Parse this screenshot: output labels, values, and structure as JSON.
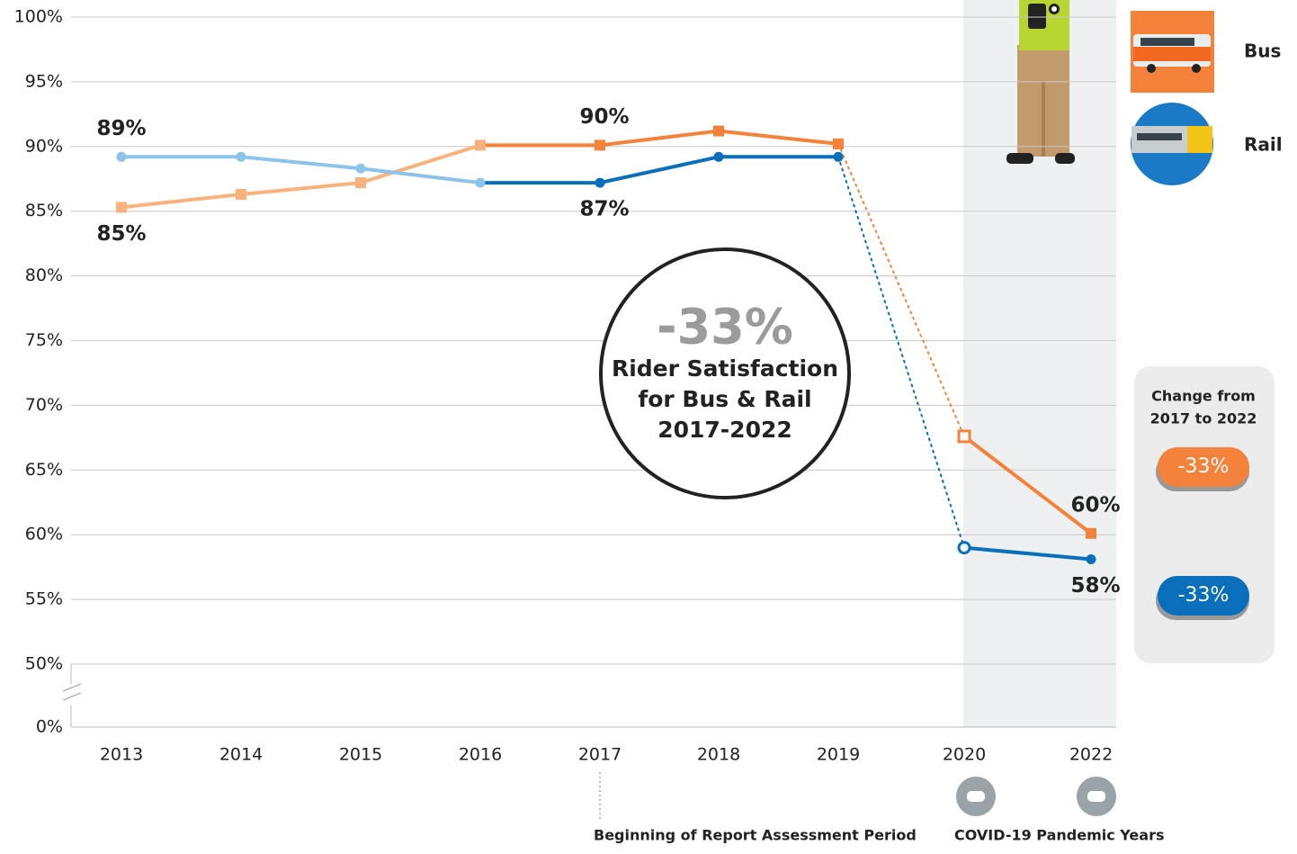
{
  "chart_data": {
    "type": "line",
    "categories": [
      "2013",
      "2014",
      "2015",
      "2016",
      "2017",
      "2018",
      "2019",
      "2020",
      "2022"
    ],
    "series": [
      {
        "name": "Bus",
        "color": "#f4823b",
        "early_color": "#f9b27c",
        "marker": "square",
        "values": [
          85.3,
          86.3,
          87.2,
          90.1,
          90.1,
          91.2,
          90.2,
          67.6,
          60.1
        ],
        "value_labels": [
          "85%",
          null,
          null,
          null,
          "90%",
          null,
          null,
          null,
          "60%"
        ]
      },
      {
        "name": "Rail",
        "color": "#0a6fba",
        "early_color": "#8cc3e8",
        "marker": "circle",
        "values": [
          89.2,
          89.2,
          88.3,
          87.2,
          87.2,
          89.2,
          89.2,
          59.0,
          58.1
        ],
        "value_labels": [
          "89%",
          null,
          null,
          null,
          "87%",
          null,
          null,
          null,
          "58%"
        ]
      }
    ],
    "ylim": [
      0,
      100
    ],
    "yticks": [
      {
        "value": 0,
        "label": "0%"
      },
      {
        "value": 50,
        "label": "50%"
      },
      {
        "value": 55,
        "label": "55%"
      },
      {
        "value": 60,
        "label": "60%"
      },
      {
        "value": 65,
        "label": "65%"
      },
      {
        "value": 70,
        "label": "70%"
      },
      {
        "value": 75,
        "label": "75%"
      },
      {
        "value": 80,
        "label": "80%"
      },
      {
        "value": 85,
        "label": "85%"
      },
      {
        "value": 90,
        "label": "90%"
      },
      {
        "value": 95,
        "label": "95%"
      },
      {
        "value": 100,
        "label": "100%"
      }
    ],
    "grid": true,
    "callout": {
      "value": "-33%",
      "lines": [
        "Rider Satisfaction",
        "for Bus & Rail",
        "2017-2022"
      ]
    },
    "change_panel": {
      "title": [
        "Change from",
        "2017 to 2022"
      ],
      "bus": "-33%",
      "rail": "-33%"
    },
    "annotations": {
      "assessment": "Beginning of Report Assessment Period",
      "covid": "COVID-19 Pandemic Years"
    }
  }
}
